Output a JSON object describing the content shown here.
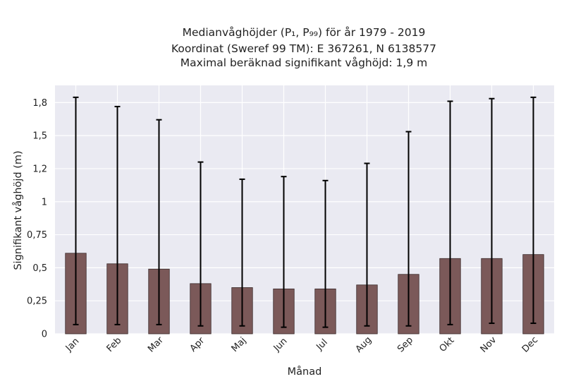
{
  "chart_data": {
    "type": "bar",
    "title_lines": [
      "Medianvåghöjder (P₁, P₉₉) för år 1979 - 2019",
      "Koordinat (Sweref 99 TM): E 367261, N 6138577",
      "Maximal beräknad signifikant våghöjd: 1,9 m"
    ],
    "xlabel": "Månad",
    "ylabel": "Signifikant våghöjd (m)",
    "categories": [
      "Jan",
      "Feb",
      "Mar",
      "Apr",
      "Maj",
      "Jun",
      "Jul",
      "Aug",
      "Sep",
      "Okt",
      "Nov",
      "Dec"
    ],
    "series": [
      {
        "values": [
          0.61,
          0.53,
          0.49,
          0.38,
          0.35,
          0.34,
          0.34,
          0.37,
          0.45,
          0.57,
          0.57,
          0.6
        ],
        "p1": [
          0.07,
          0.07,
          0.07,
          0.06,
          0.06,
          0.05,
          0.05,
          0.06,
          0.06,
          0.07,
          0.08,
          0.08
        ],
        "p99": [
          1.79,
          1.72,
          1.62,
          1.3,
          1.17,
          1.19,
          1.16,
          1.29,
          1.53,
          1.76,
          1.78,
          1.79
        ]
      }
    ],
    "ylim": [
      0,
      1.88
    ],
    "yticks": [
      0,
      0.25,
      0.5,
      0.75,
      1,
      1.25,
      1.5,
      1.75
    ],
    "ytick_labels": [
      "0",
      "0,25",
      "0,5",
      "0,75",
      "1",
      "1,2",
      "1,5",
      "1,8"
    ],
    "grid": true,
    "colors": {
      "bar": "#7b5959",
      "bar_edge": "#3a2a2a",
      "errorbar": "#000000",
      "plot_background": "#eaeaf2",
      "grid": "#ffffff"
    }
  }
}
